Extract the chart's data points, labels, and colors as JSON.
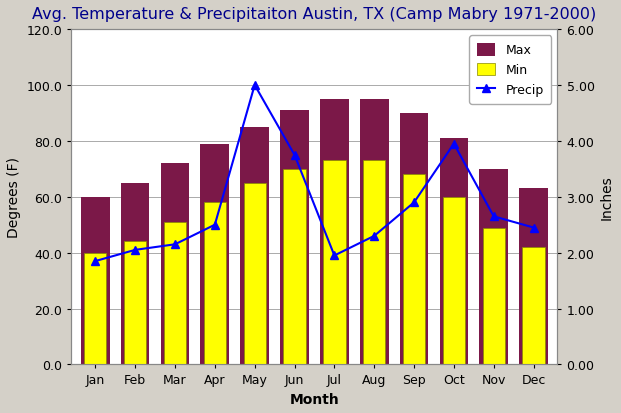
{
  "title": "Avg. Temperature & Precipitaiton Austin, TX (Camp Mabry 1971-2000)",
  "months": [
    "Jan",
    "Feb",
    "Mar",
    "Apr",
    "May",
    "Jun",
    "Jul",
    "Aug",
    "Sep",
    "Oct",
    "Nov",
    "Dec"
  ],
  "max_temp": [
    60,
    65,
    72,
    79,
    85,
    91,
    95,
    95,
    90,
    81,
    70,
    63
  ],
  "min_temp": [
    40,
    44,
    51,
    58,
    65,
    70,
    73,
    73,
    68,
    60,
    49,
    42
  ],
  "precip": [
    1.85,
    2.05,
    2.15,
    2.5,
    5.0,
    3.75,
    1.95,
    2.3,
    2.9,
    3.95,
    2.65,
    2.45
  ],
  "bar_color_max": "#7B1848",
  "bar_color_min": "#FFFF00",
  "line_color": "#0000FF",
  "title_color": "#00008B",
  "ylabel_left": "Degrees (F)",
  "ylabel_right": "Inches",
  "xlabel": "Month",
  "ylim_left": [
    0,
    120
  ],
  "ylim_right": [
    0,
    6.0
  ],
  "yticks_left": [
    0,
    20,
    40,
    60,
    80,
    100,
    120
  ],
  "yticks_right": [
    0.0,
    1.0,
    2.0,
    3.0,
    4.0,
    5.0,
    6.0
  ],
  "ytick_labels_left": [
    "0.0",
    "20.0",
    "40.0",
    "60.0",
    "80.0",
    "100.0",
    "120.0"
  ],
  "ytick_labels_right": [
    "0.00",
    "1.00",
    "2.00",
    "3.00",
    "4.00",
    "5.00",
    "6.00"
  ],
  "title_fontsize": 11.5,
  "axis_label_fontsize": 10,
  "tick_fontsize": 9,
  "legend_labels": [
    "Max",
    "Min",
    "Precip"
  ],
  "bar_width": 0.4,
  "bg_color": "#d4d0c8",
  "plot_bg_color": "#ffffff"
}
